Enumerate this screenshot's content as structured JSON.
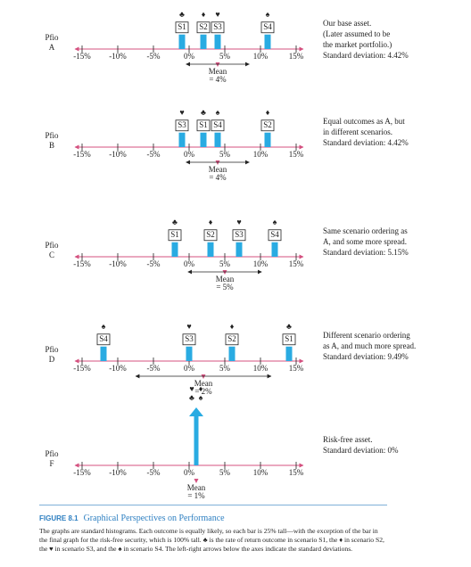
{
  "chart_data": [
    {
      "type": "bar",
      "label": "Pfio",
      "name": "A",
      "categories": [
        "S1",
        "S2",
        "S3",
        "S4"
      ],
      "symbols": [
        "♣",
        "♦",
        "♥",
        "♠"
      ],
      "x": [
        -1,
        2,
        4,
        11
      ],
      "values": [
        25,
        25,
        25,
        25
      ],
      "color": "#29abe2",
      "xlim": [
        -16,
        16
      ],
      "ylim": [
        0,
        100
      ],
      "xticks": [
        {
          "value": -15,
          "label": "-15%"
        },
        {
          "value": -10,
          "label": "-10%"
        },
        {
          "value": -5,
          "label": "-5%"
        },
        {
          "value": 0,
          "label": "0%"
        },
        {
          "value": 5,
          "label": "5%"
        },
        {
          "value": 10,
          "label": "10%"
        },
        {
          "value": 15,
          "label": "15%"
        }
      ],
      "mean_title": "Mean",
      "mean": {
        "value": 4,
        "label": "= 4%"
      },
      "std": 4.42,
      "description": [
        "Our base asset.",
        "(Later assumed to be",
        "the market portfolio.)",
        "Standard deviation: 4.42%"
      ]
    },
    {
      "type": "bar",
      "label": "Pfio",
      "name": "B",
      "categories": [
        "S3",
        "S1",
        "S4",
        "S2"
      ],
      "symbols": [
        "♥",
        "♣",
        "♠",
        "♦"
      ],
      "x": [
        -1,
        2,
        4,
        11
      ],
      "values": [
        25,
        25,
        25,
        25
      ],
      "color": "#29abe2",
      "xlim": [
        -16,
        16
      ],
      "ylim": [
        0,
        100
      ],
      "xticks": [
        {
          "value": -15,
          "label": "-15%"
        },
        {
          "value": -10,
          "label": "-10%"
        },
        {
          "value": -5,
          "label": "-5%"
        },
        {
          "value": 0,
          "label": "0%"
        },
        {
          "value": 5,
          "label": "5%"
        },
        {
          "value": 10,
          "label": "10%"
        },
        {
          "value": 15,
          "label": "15%"
        }
      ],
      "mean_title": "Mean",
      "mean": {
        "value": 4,
        "label": "= 4%"
      },
      "std": 4.42,
      "description": [
        "Equal outcomes as A, but",
        "in different scenarios.",
        "Standard deviation: 4.42%"
      ]
    },
    {
      "type": "bar",
      "label": "Pfio",
      "name": "C",
      "categories": [
        "S1",
        "S2",
        "S3",
        "S4"
      ],
      "symbols": [
        "♣",
        "♦",
        "♥",
        "♠"
      ],
      "x": [
        -2,
        3,
        7,
        12
      ],
      "values": [
        25,
        25,
        25,
        25
      ],
      "color": "#29abe2",
      "xlim": [
        -16,
        16
      ],
      "ylim": [
        0,
        100
      ],
      "xticks": [
        {
          "value": -15,
          "label": "-15%"
        },
        {
          "value": -10,
          "label": "-10%"
        },
        {
          "value": -5,
          "label": "-5%"
        },
        {
          "value": 0,
          "label": "0%"
        },
        {
          "value": 5,
          "label": "5%"
        },
        {
          "value": 10,
          "label": "10%"
        },
        {
          "value": 15,
          "label": "15%"
        }
      ],
      "mean_title": "Mean",
      "mean": {
        "value": 5,
        "label": "= 5%"
      },
      "std": 5.15,
      "description": [
        "Same scenario ordering as",
        "A, and some more spread.",
        "Standard deviation: 5.15%"
      ]
    },
    {
      "type": "bar",
      "label": "Pfio",
      "name": "D",
      "categories": [
        "S4",
        "S3",
        "S2",
        "S1"
      ],
      "symbols": [
        "♠",
        "♥",
        "♦",
        "♣"
      ],
      "x": [
        -12,
        0,
        6,
        14
      ],
      "values": [
        25,
        25,
        25,
        25
      ],
      "color": "#29abe2",
      "xlim": [
        -16,
        16
      ],
      "ylim": [
        0,
        100
      ],
      "xticks": [
        {
          "value": -15,
          "label": "-15%"
        },
        {
          "value": -10,
          "label": "-10%"
        },
        {
          "value": -5,
          "label": "-5%"
        },
        {
          "value": 0,
          "label": "0%"
        },
        {
          "value": 5,
          "label": "5%"
        },
        {
          "value": 10,
          "label": "10%"
        },
        {
          "value": 15,
          "label": "15%"
        }
      ],
      "mean_title": "Mean",
      "mean": {
        "value": 2,
        "label": "= 2%"
      },
      "std": 9.49,
      "description": [
        "Different scenario ordering",
        "as A, and much more spread.",
        "Standard deviation: 9.49%"
      ]
    },
    {
      "type": "bar",
      "label": "Pfio",
      "name": "F",
      "bar_style": "arrow",
      "symbols": [
        "♥",
        "♦",
        "♣",
        "♠"
      ],
      "x": [
        1
      ],
      "values": [
        100
      ],
      "color": "#29abe2",
      "xlim": [
        -16,
        16
      ],
      "ylim": [
        0,
        100
      ],
      "xticks": [
        {
          "value": -15,
          "label": "-15%"
        },
        {
          "value": -10,
          "label": "-10%"
        },
        {
          "value": -5,
          "label": "-5%"
        },
        {
          "value": 0,
          "label": "0%"
        },
        {
          "value": 5,
          "label": "5%"
        },
        {
          "value": 10,
          "label": "10%"
        },
        {
          "value": 15,
          "label": "15%"
        }
      ],
      "mean_title": "Mean",
      "mean": {
        "value": 1,
        "label": "= 1%"
      },
      "std": 0,
      "description": [
        "Risk-free asset.",
        "Standard deviation: 0%"
      ]
    }
  ],
  "figure": {
    "number": "FIGURE 8.1",
    "title": "Graphical Perspectives on Performance",
    "caption": "The graphs are standard histograms. Each outcome is equally likely, so each bar is 25% tall—with the exception of the bar in the final graph for the risk-free security, which is 100% tall. ♣ is the rate of return outcome in scenario S1, the ♦ in scenario S2, the ♥ in scenario S3, and the ♠ in scenario S4. The left-right arrows below the axes indicate the standard deviations."
  }
}
